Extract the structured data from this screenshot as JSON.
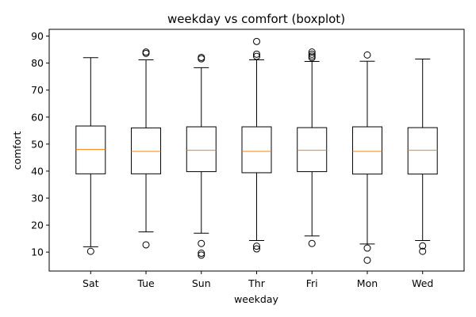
{
  "chart_data": {
    "type": "boxplot",
    "title": "weekday vs comfort (boxplot)",
    "xlabel": "weekday",
    "ylabel": "comfort",
    "ylim": [
      3,
      92.5
    ],
    "yticks": [
      10,
      20,
      30,
      40,
      50,
      60,
      70,
      80,
      90
    ],
    "grid": false,
    "colors": {
      "box": "#000000",
      "median": "#ff7f0e",
      "background": "#ffffff"
    },
    "categories": [
      "Sat",
      "Tue",
      "Sun",
      "Thr",
      "Fri",
      "Mon",
      "Wed"
    ],
    "boxes": [
      {
        "category": "Sat",
        "whisker_low": 12,
        "q1": 39,
        "median": 48,
        "q3": 56.7,
        "whisker_high": 82,
        "outliers": [
          10.3
        ]
      },
      {
        "category": "Tue",
        "whisker_low": 17.5,
        "q1": 39,
        "median": 47.3,
        "q3": 56,
        "whisker_high": 81.2,
        "outliers": [
          12.7,
          83.6,
          84.1
        ]
      },
      {
        "category": "Sun",
        "whisker_low": 17,
        "q1": 39.8,
        "median": 47.7,
        "q3": 56.4,
        "whisker_high": 78.3,
        "outliers": [
          8.9,
          9.6,
          13.2,
          81.6,
          82.1
        ]
      },
      {
        "category": "Thr",
        "whisker_low": 14.3,
        "q1": 39.4,
        "median": 47.3,
        "q3": 56.4,
        "whisker_high": 81.2,
        "outliers": [
          11.2,
          12.2,
          82.5,
          83.3,
          88
        ]
      },
      {
        "category": "Fri",
        "whisker_low": 16,
        "q1": 39.8,
        "median": 47.7,
        "q3": 56.1,
        "whisker_high": 80.6,
        "outliers": [
          13.2,
          82,
          82.6,
          83.3,
          84.1
        ]
      },
      {
        "category": "Mon",
        "whisker_low": 13,
        "q1": 38.9,
        "median": 47.3,
        "q3": 56.4,
        "whisker_high": 80.7,
        "outliers": [
          7,
          11.5,
          83
        ]
      },
      {
        "category": "Wed",
        "whisker_low": 14.3,
        "q1": 38.9,
        "median": 47.7,
        "q3": 56.1,
        "whisker_high": 81.5,
        "outliers": [
          10.3,
          12.3
        ]
      }
    ]
  }
}
